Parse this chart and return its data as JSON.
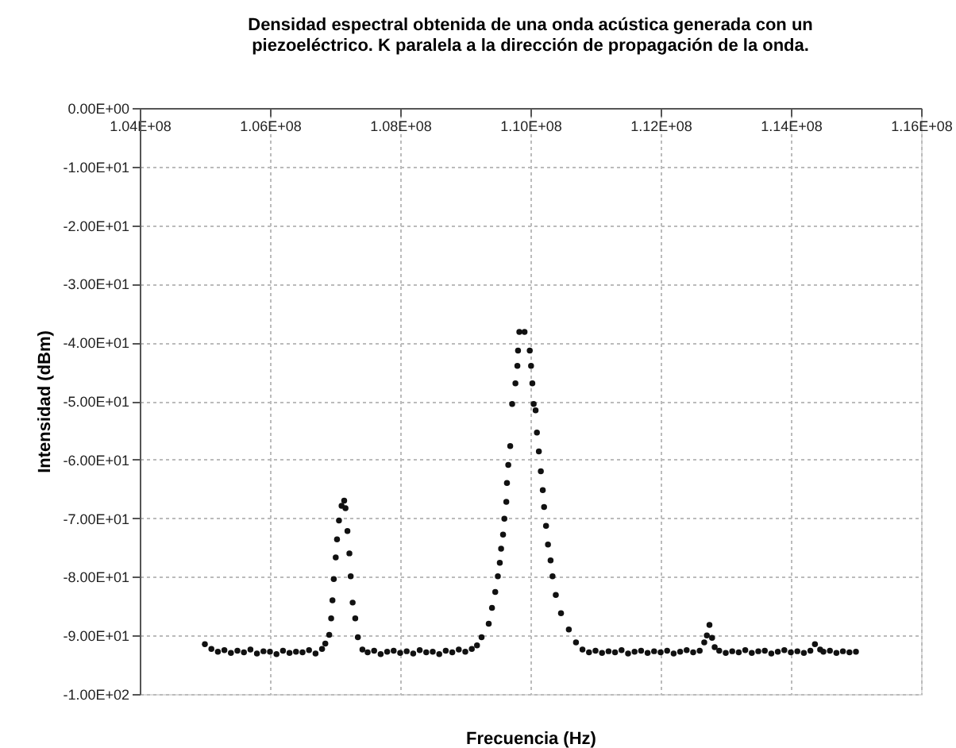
{
  "chart_data": {
    "type": "scatter",
    "title": [
      "Densidad espectral obtenida de una onda acústica generada con un",
      "piezoeléctrico. K paralela a la dirección de propagación de la onda."
    ],
    "xlabel": "Frecuencia (Hz)",
    "ylabel": "Intensidad (dBm)",
    "xlim": [
      104000000,
      116000000
    ],
    "ylim": [
      -100,
      0
    ],
    "xticks": [
      {
        "value": 104000000,
        "label": "1.04E+08"
      },
      {
        "value": 106000000,
        "label": "1.06E+08"
      },
      {
        "value": 108000000,
        "label": "1.08E+08"
      },
      {
        "value": 110000000,
        "label": "1.10E+08"
      },
      {
        "value": 112000000,
        "label": "1.12E+08"
      },
      {
        "value": 114000000,
        "label": "1.14E+08"
      },
      {
        "value": 116000000,
        "label": "1.16E+08"
      }
    ],
    "yticks": [
      {
        "value": 0,
        "label": "0.00E+00"
      },
      {
        "value": -10,
        "label": "-1.00E+01"
      },
      {
        "value": -20,
        "label": "-2.00E+01"
      },
      {
        "value": -30,
        "label": "-3.00E+01"
      },
      {
        "value": -40,
        "label": "-4.00E+01"
      },
      {
        "value": -50,
        "label": "-5.00E+01"
      },
      {
        "value": -60,
        "label": "-6.00E+01"
      },
      {
        "value": -70,
        "label": "-7.00E+01"
      },
      {
        "value": -80,
        "label": "-8.00E+01"
      },
      {
        "value": -90,
        "label": "-9.00E+01"
      },
      {
        "value": -100,
        "label": "-1.00E+02"
      }
    ],
    "grid": true,
    "marker": "circle",
    "series": [
      {
        "color": "#111111",
        "x": [
          105000000,
          105100000,
          105200000,
          105300000,
          105400000,
          105500000,
          105600000,
          105700000,
          105800000,
          105900000,
          106000000,
          106100000,
          106200000,
          106300000,
          106400000,
          106500000,
          106600000,
          106700000,
          106800000,
          106850000,
          106910000,
          106940000,
          106960000,
          106980000,
          107010000,
          107030000,
          107060000,
          107100000,
          107140000,
          107160000,
          107190000,
          107220000,
          107240000,
          107270000,
          107310000,
          107350000,
          107420000,
          107500000,
          107600000,
          107700000,
          107800000,
          107900000,
          108000000,
          108100000,
          108200000,
          108300000,
          108400000,
          108500000,
          108600000,
          108700000,
          108800000,
          108900000,
          109000000,
          109100000,
          109180000,
          109250000,
          109360000,
          109410000,
          109460000,
          109500000,
          109530000,
          109550000,
          109580000,
          109600000,
          109630000,
          109640000,
          109660000,
          109690000,
          109720000,
          109770000,
          109800000,
          109810000,
          109830000,
          109910000,
          109990000,
          110010000,
          110030000,
          110050000,
          110080000,
          110100000,
          110130000,
          110160000,
          110190000,
          110210000,
          110240000,
          110270000,
          110310000,
          110340000,
          110390000,
          110470000,
          110590000,
          110700000,
          110800000,
          110900000,
          111000000,
          111100000,
          111200000,
          111300000,
          111400000,
          111500000,
          111600000,
          111700000,
          111800000,
          111900000,
          112000000,
          112100000,
          112200000,
          112300000,
          112400000,
          112500000,
          112600000,
          112670000,
          112710000,
          112750000,
          112790000,
          112830000,
          112900000,
          113000000,
          113100000,
          113200000,
          113300000,
          113400000,
          113500000,
          113600000,
          113700000,
          113800000,
          113900000,
          114000000,
          114100000,
          114200000,
          114300000,
          114370000,
          114450000,
          114500000,
          114600000,
          114700000,
          114800000,
          114900000,
          115000000
        ],
        "values": [
          -91.5,
          -92.3,
          -92.8,
          -92.5,
          -93.0,
          -92.6,
          -92.9,
          -92.4,
          -93.1,
          -92.7,
          -92.8,
          -93.2,
          -92.6,
          -93.0,
          -92.8,
          -92.9,
          -92.5,
          -93.1,
          -92.3,
          -91.4,
          -89.9,
          -87.1,
          -84.0,
          -80.4,
          -76.7,
          -73.6,
          -70.4,
          -67.9,
          -67.0,
          -68.3,
          -72.2,
          -76.0,
          -79.9,
          -84.4,
          -87.1,
          -90.3,
          -92.4,
          -92.9,
          -92.6,
          -93.2,
          -92.8,
          -92.6,
          -93.0,
          -92.7,
          -93.1,
          -92.5,
          -92.9,
          -92.8,
          -93.2,
          -92.6,
          -92.9,
          -92.4,
          -92.8,
          -92.3,
          -91.7,
          -90.3,
          -88.0,
          -85.3,
          -82.6,
          -79.9,
          -77.6,
          -75.2,
          -72.8,
          -70.1,
          -67.2,
          -64.0,
          -60.9,
          -57.7,
          -50.5,
          -47.0,
          -44.0,
          -41.4,
          -38.2,
          -38.2,
          -41.4,
          -44.0,
          -47.0,
          -50.5,
          -51.6,
          -55.4,
          -58.6,
          -62.0,
          -65.2,
          -68.1,
          -71.3,
          -74.5,
          -77.2,
          -79.9,
          -83.1,
          -86.2,
          -89.0,
          -91.2,
          -92.4,
          -92.9,
          -92.6,
          -93.0,
          -92.7,
          -92.9,
          -92.5,
          -93.1,
          -92.8,
          -92.6,
          -93.0,
          -92.7,
          -92.9,
          -92.6,
          -93.1,
          -92.8,
          -92.5,
          -92.9,
          -92.6,
          -91.2,
          -90.0,
          -88.2,
          -90.4,
          -92.0,
          -92.6,
          -93.0,
          -92.7,
          -92.9,
          -92.5,
          -93.0,
          -92.7,
          -92.6,
          -93.1,
          -92.8,
          -92.5,
          -92.9,
          -92.7,
          -93.0,
          -92.6,
          -91.5,
          -92.4,
          -92.8,
          -92.6,
          -93.0,
          -92.7,
          -92.9,
          -92.8
        ]
      }
    ]
  }
}
